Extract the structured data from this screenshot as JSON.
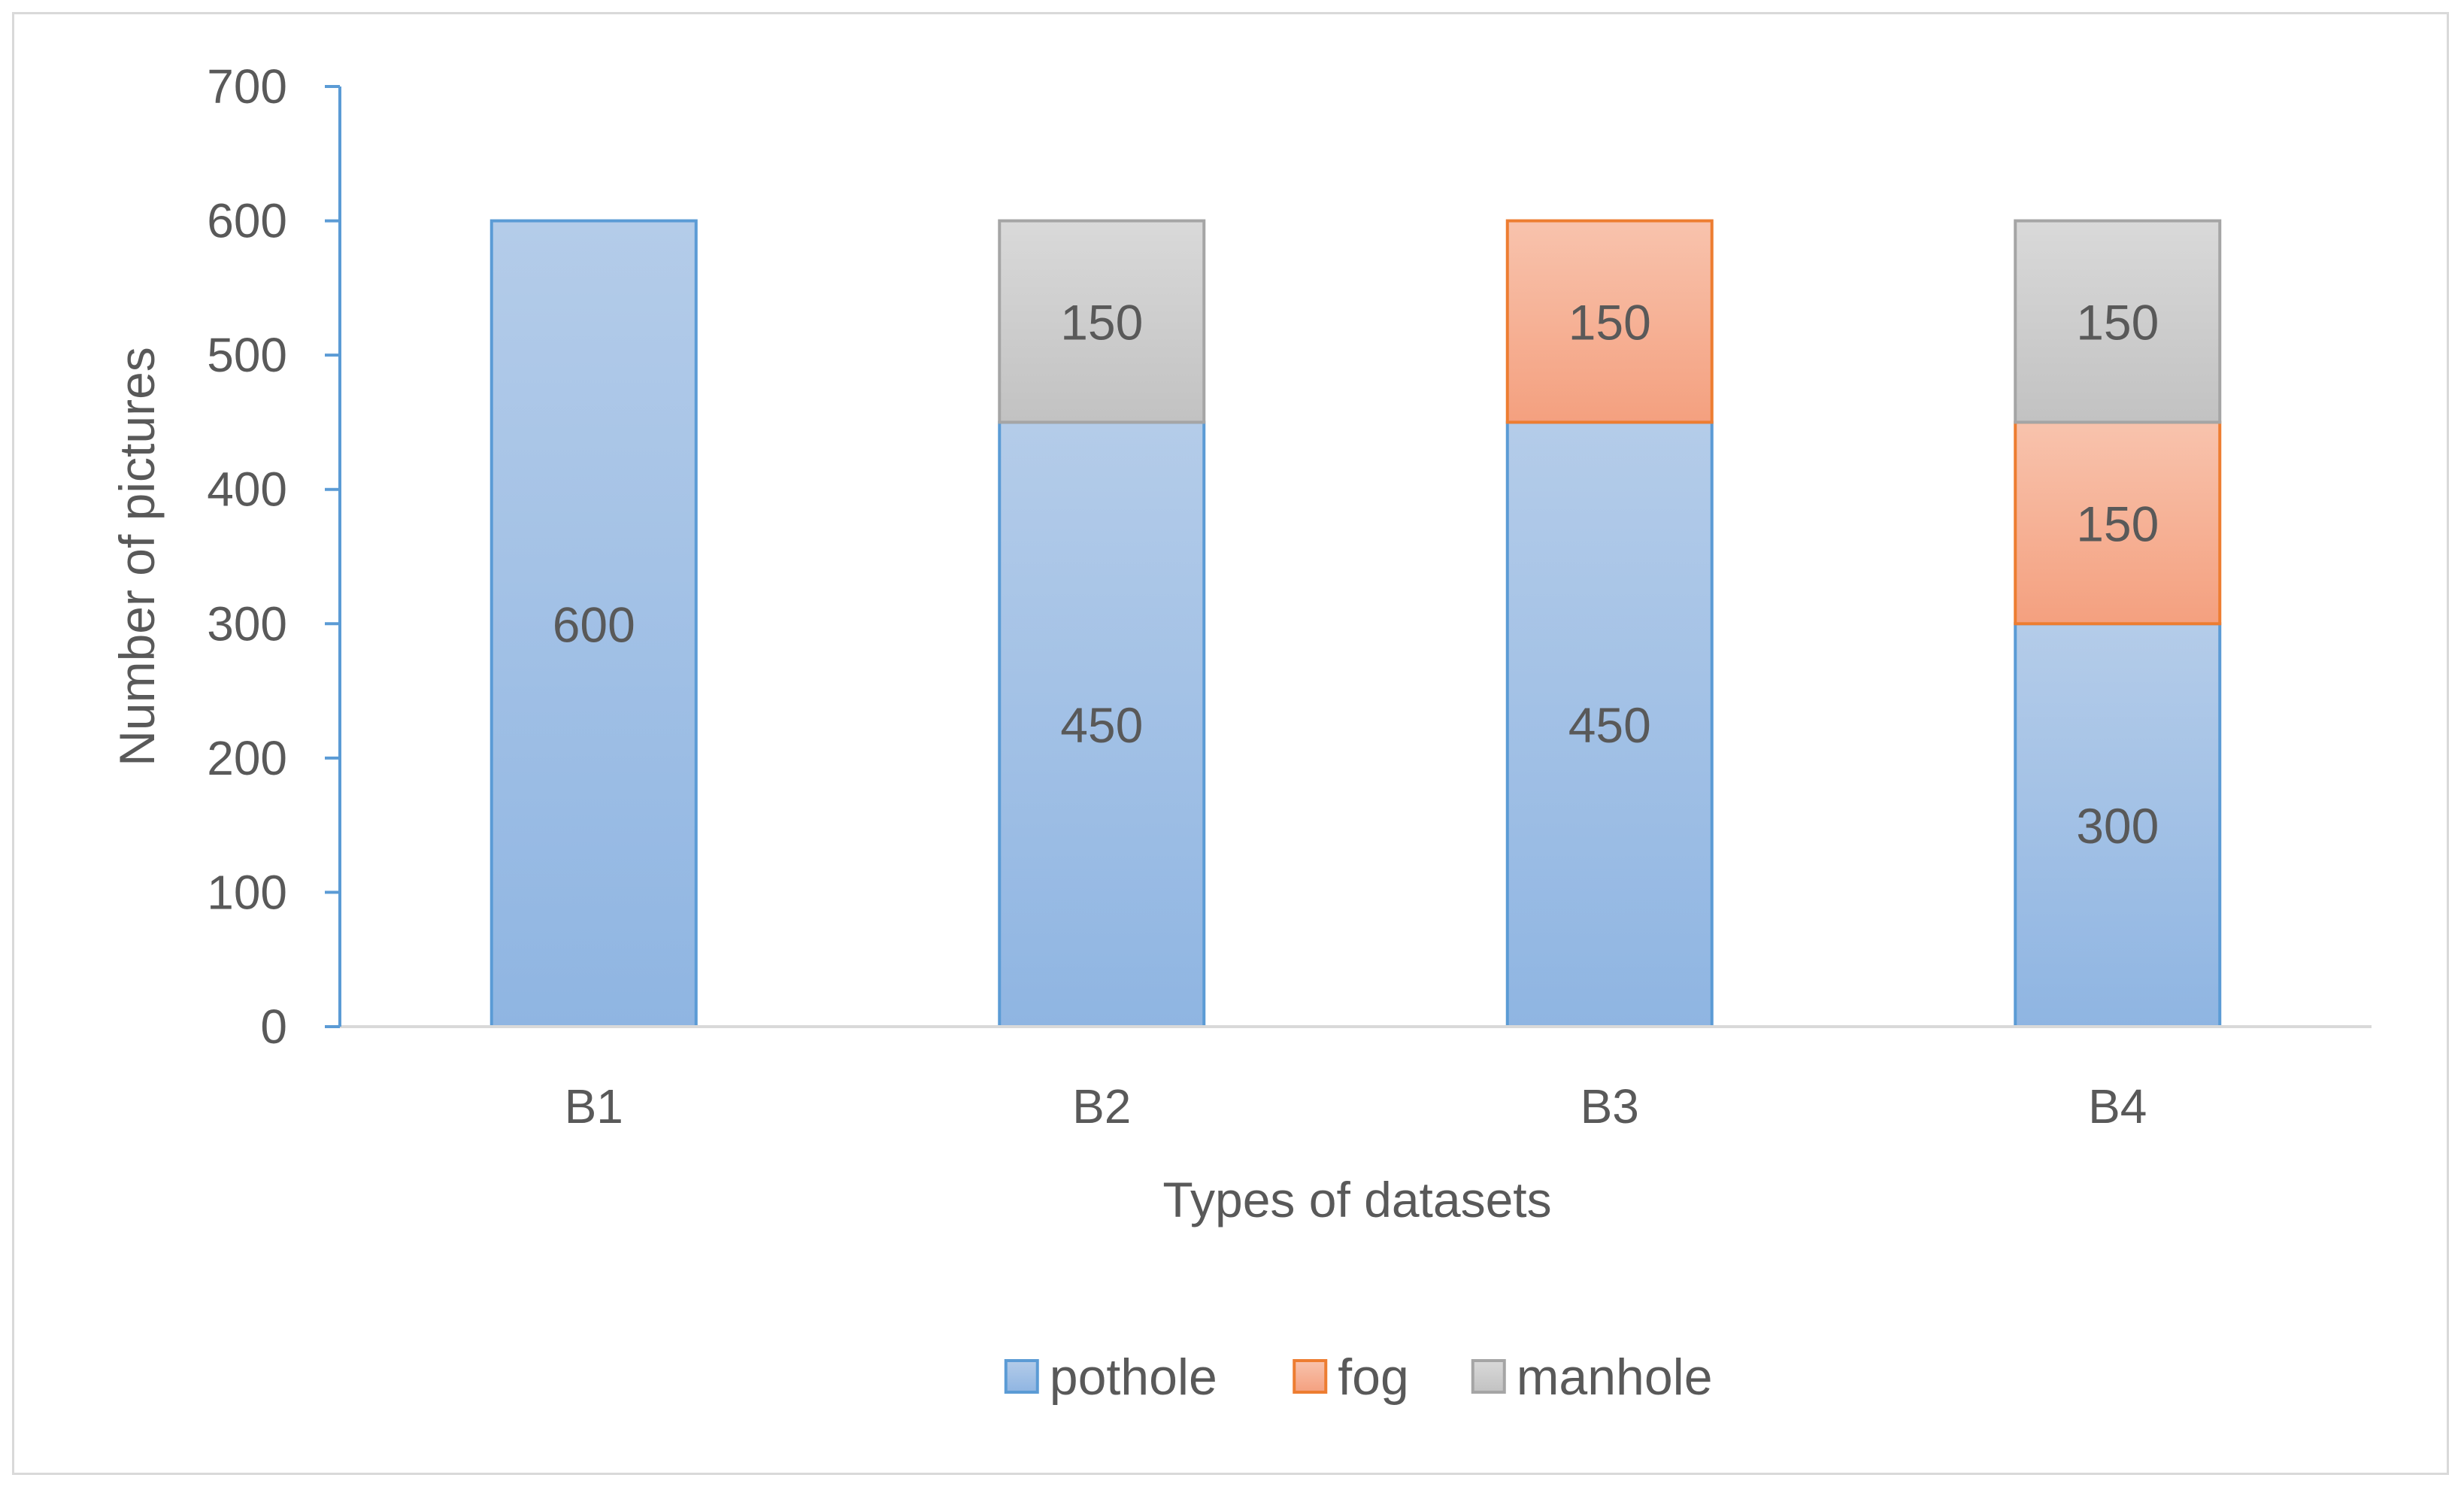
{
  "chart_data": {
    "type": "bar",
    "stacked": true,
    "title": "",
    "xlabel": "Types of datasets",
    "ylabel": "Number of pictures",
    "ylim": [
      0,
      700
    ],
    "yticks": [
      0,
      100,
      200,
      300,
      400,
      500,
      600,
      700
    ],
    "grid": false,
    "legend_position": "bottom",
    "categories": [
      "B1",
      "B2",
      "B3",
      "B4"
    ],
    "series": [
      {
        "name": "pothole",
        "values": [
          600,
          450,
          450,
          300
        ],
        "fill_top": "#b4cce9",
        "fill_bottom": "#8fb5e2",
        "stroke": "#5b9bd5"
      },
      {
        "name": "fog",
        "values": [
          0,
          0,
          150,
          150
        ],
        "fill_top": "#f8c3ad",
        "fill_bottom": "#f4a07f",
        "stroke": "#ed7d31"
      },
      {
        "name": "manhole",
        "values": [
          0,
          150,
          0,
          150
        ],
        "fill_top": "#d9d9d9",
        "fill_bottom": "#c2c2c2",
        "stroke": "#a5a5a5"
      }
    ],
    "axis_color": "#5b9bd5",
    "baseline_color": "#d9d9d9"
  }
}
